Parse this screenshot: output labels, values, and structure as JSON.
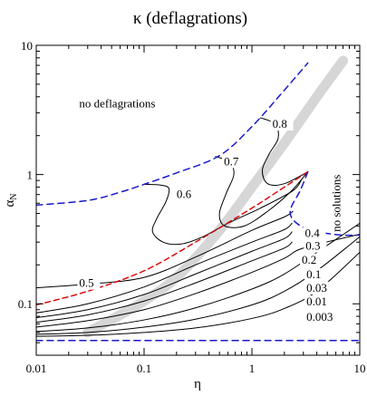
{
  "chart_data": {
    "type": "line",
    "title": "κ  (deflagrations)",
    "xlabel": "η",
    "ylabel": "α",
    "ylabel_sub": "N",
    "x_scale": "log",
    "y_scale": "log",
    "xlim": [
      0.01,
      10
    ],
    "ylim": [
      0.04,
      10
    ],
    "grid": false,
    "x_ticks": [
      {
        "value": 0.01,
        "label": "0.01"
      },
      {
        "value": 0.1,
        "label": "0.1"
      },
      {
        "value": 1,
        "label": "1"
      },
      {
        "value": 10,
        "label": "10"
      }
    ],
    "y_ticks": [
      {
        "value": 0.1,
        "label": "0.1"
      },
      {
        "value": 1,
        "label": "1"
      },
      {
        "value": 10,
        "label": "10"
      }
    ],
    "region_labels": [
      {
        "text": "no deflagrations",
        "x": 0.025,
        "y": 3.3
      },
      {
        "text": "no solutions",
        "x": 6.6,
        "y": 0.6,
        "rotate": -90
      }
    ],
    "colors": {
      "contour": "#000000",
      "boundary": "#1a1acc",
      "red_curve": "#dd0000",
      "band": "#d6d6d6"
    },
    "band": {
      "x": [
        0.03,
        0.06,
        0.1,
        0.2,
        0.5,
        1,
        2,
        4,
        7
      ],
      "y": [
        0.06,
        0.082,
        0.105,
        0.16,
        0.37,
        0.8,
        1.75,
        4.0,
        7.6
      ]
    },
    "boundaries": [
      {
        "name": "upper",
        "x": [
          0.01,
          0.03,
          0.06,
          0.1,
          0.2,
          0.5,
          1,
          2,
          3.3
        ],
        "y": [
          0.58,
          0.63,
          0.73,
          0.84,
          1.03,
          1.4,
          2.35,
          4.5,
          7.3
        ]
      },
      {
        "name": "lower",
        "x": [
          0.01,
          10
        ],
        "y": [
          0.052,
          0.052
        ]
      },
      {
        "name": "right",
        "x": [
          3.3,
          2.8,
          2.3,
          2.35,
          3.0,
          4.5,
          7.0,
          10
        ],
        "y": [
          1.05,
          0.75,
          0.55,
          0.46,
          0.39,
          0.355,
          0.34,
          0.34
        ]
      }
    ],
    "red_curve": {
      "x": [
        0.01,
        0.03,
        0.1,
        0.3,
        1,
        2,
        3.3
      ],
      "y": [
        0.098,
        0.125,
        0.18,
        0.3,
        0.55,
        0.8,
        1.05
      ]
    },
    "series": [
      {
        "name": "0.003",
        "label_at": [
          3.2,
          0.074
        ],
        "x": [
          0.01,
          0.03,
          0.1,
          0.3,
          1,
          2,
          4,
          10
        ],
        "y": [
          0.056,
          0.057,
          0.06,
          0.065,
          0.077,
          0.092,
          0.125,
          0.25
        ]
      },
      {
        "name": "0.01",
        "label_at": [
          3.2,
          0.097
        ],
        "x": [
          0.01,
          0.03,
          0.1,
          0.3,
          1,
          2,
          4,
          10
        ],
        "y": [
          0.058,
          0.06,
          0.066,
          0.076,
          0.098,
          0.125,
          0.18,
          0.33
        ]
      },
      {
        "name": "0.03",
        "label_at": [
          3.2,
          0.124
        ],
        "x": [
          0.01,
          0.03,
          0.1,
          0.3,
          1,
          2,
          4,
          10
        ],
        "y": [
          0.061,
          0.065,
          0.075,
          0.093,
          0.13,
          0.17,
          0.25,
          0.42
        ]
      },
      {
        "name": "0.1",
        "label_at": [
          3.2,
          0.158
        ],
        "x": [
          0.01,
          0.03,
          0.1,
          0.3,
          1,
          2,
          3,
          10
        ],
        "y": [
          0.066,
          0.074,
          0.09,
          0.12,
          0.175,
          0.225,
          0.27,
          0.345
        ]
      },
      {
        "name": "0.2",
        "label_at": [
          2.9,
          0.205
        ],
        "x": [
          0.01,
          0.03,
          0.1,
          0.3,
          1,
          2,
          2.35
        ],
        "y": [
          0.072,
          0.082,
          0.105,
          0.145,
          0.215,
          0.27,
          0.3
        ]
      },
      {
        "name": "0.3",
        "label_at": [
          3.15,
          0.262
        ],
        "x": [
          0.01,
          0.03,
          0.1,
          0.3,
          1,
          2,
          2.35
        ],
        "y": [
          0.078,
          0.09,
          0.118,
          0.17,
          0.255,
          0.32,
          0.36
        ]
      },
      {
        "name": "0.4",
        "label_at": [
          3.1,
          0.33
        ],
        "x": [
          0.01,
          0.03,
          0.1,
          0.3,
          1,
          2,
          2.35
        ],
        "y": [
          0.085,
          0.1,
          0.135,
          0.2,
          0.3,
          0.375,
          0.42
        ]
      },
      {
        "name": "0.5",
        "label_at": [
          0.025,
          0.135
        ],
        "x": [
          0.01,
          0.03,
          0.1,
          0.3,
          1,
          2,
          2.4
        ],
        "y": [
          0.133,
          0.142,
          0.16,
          0.23,
          0.37,
          0.47,
          0.52
        ]
      },
      {
        "name": "0.6",
        "label_at": [
          0.2,
          0.66
        ],
        "x": [
          0.1,
          0.14,
          0.17,
          0.16,
          0.13,
          0.12,
          0.15,
          0.22,
          0.35,
          0.6,
          1.2,
          2.4,
          2.9
        ],
        "y": [
          0.84,
          0.83,
          0.78,
          0.62,
          0.45,
          0.36,
          0.3,
          0.29,
          0.33,
          0.42,
          0.55,
          0.75,
          0.92
        ]
      },
      {
        "name": "0.7",
        "label_at": [
          0.55,
          1.18
        ],
        "x": [
          0.46,
          0.62,
          0.68,
          0.58,
          0.5,
          0.56,
          0.85,
          1.4,
          2.3,
          3.3
        ],
        "y": [
          1.38,
          1.25,
          1.0,
          0.72,
          0.5,
          0.4,
          0.4,
          0.52,
          0.74,
          1.05
        ]
      },
      {
        "name": "0.8",
        "label_at": [
          1.55,
          2.3
        ],
        "x": [
          1.2,
          1.65,
          1.75,
          1.45,
          1.25,
          1.4,
          2.0,
          3.3
        ],
        "y": [
          2.75,
          2.45,
          1.9,
          1.45,
          1.08,
          0.85,
          0.85,
          1.05
        ]
      }
    ]
  }
}
